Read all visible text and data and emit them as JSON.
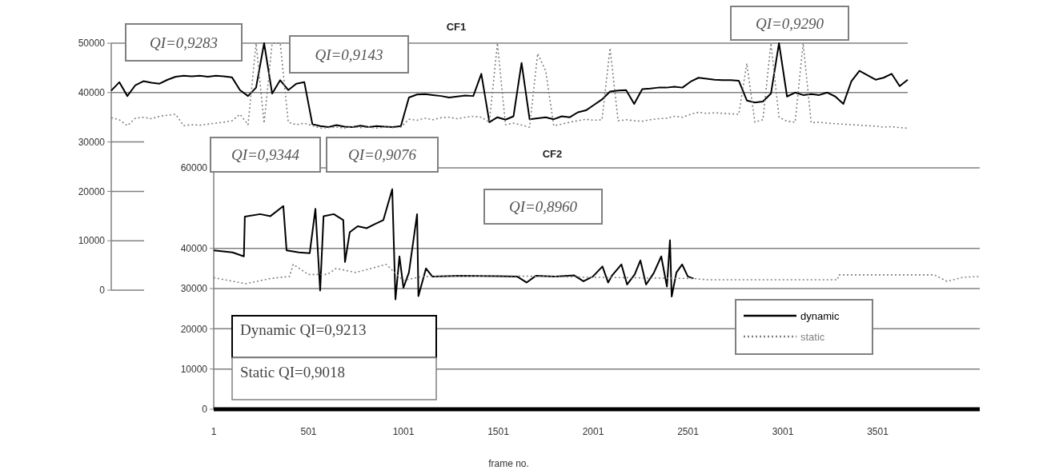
{
  "chart_data": [
    {
      "type": "line",
      "title": "CF1",
      "ylim": [
        0,
        50000
      ],
      "yticks": [
        0,
        10000,
        20000,
        30000,
        40000,
        50000
      ],
      "grid": "y",
      "tick_labels": "y",
      "categories": [
        null,
        null,
        null,
        null,
        null,
        null,
        null,
        null,
        null,
        null,
        null,
        null,
        null,
        null,
        null,
        null,
        null,
        null,
        null,
        null,
        null,
        null,
        null,
        null,
        null,
        null,
        null,
        null,
        null,
        null,
        null,
        null,
        null,
        null,
        null,
        null,
        null,
        null,
        null,
        null,
        null,
        null,
        null,
        null,
        null,
        null,
        null,
        null,
        null,
        null,
        null,
        null,
        null,
        null,
        null,
        null,
        null,
        null,
        null,
        null,
        null,
        null,
        null,
        null,
        null,
        null,
        null,
        null,
        null,
        null,
        null,
        null,
        null,
        null,
        null,
        null,
        null,
        null,
        null,
        null,
        null,
        null,
        null,
        null,
        null,
        null,
        null,
        null,
        null,
        null,
        null,
        null,
        null,
        null,
        null,
        null,
        null,
        null,
        null,
        null
      ],
      "series": [
        {
          "color": "#000000",
          "line_style": "solid",
          "values": [
            40400,
            42100,
            39300,
            41500,
            42300,
            42000,
            41800,
            42600,
            43200,
            43400,
            43300,
            43400,
            43200,
            43400,
            43300,
            43100,
            40500,
            39300,
            41000,
            50000,
            39800,
            42500,
            40500,
            41800,
            42100,
            33600,
            33200,
            33000,
            33400,
            33100,
            33000,
            33300,
            33000,
            33200,
            33100,
            33000,
            33200,
            39000,
            39600,
            39700,
            39500,
            39300,
            39000,
            39200,
            39400,
            39300,
            43800,
            34000,
            35000,
            34500,
            35200,
            46000,
            34600,
            34800,
            35000,
            34600,
            35200,
            35000,
            36000,
            36400,
            37500,
            38600,
            40200,
            40400,
            40500,
            37700,
            40700,
            40800,
            41000,
            41000,
            41200,
            41000,
            42200,
            43000,
            42800,
            42600,
            42500,
            42500,
            42400,
            38400,
            38000,
            38200,
            39800,
            50000,
            39200,
            40000,
            39500,
            39700,
            39500,
            40000,
            39200,
            37700,
            42300,
            44400,
            43500,
            42600,
            43000,
            43800,
            41300,
            42600
          ]
        },
        {
          "color": "#808080",
          "line_style": "dotted",
          "values": [
            34900,
            34500,
            33300,
            34800,
            35000,
            34700,
            35200,
            35400,
            35600,
            33300,
            33500,
            33400,
            33600,
            33800,
            34000,
            34300,
            35600,
            33500,
            50000,
            33800,
            50000,
            50000,
            34000,
            33500,
            33800,
            33300,
            32800,
            32900,
            33000,
            32800,
            33100,
            32900,
            33000,
            32800,
            33000,
            32900,
            33000,
            34600,
            34400,
            34800,
            34500,
            34900,
            35000,
            34700,
            35000,
            35200,
            35000,
            34000,
            50000,
            33500,
            33800,
            33400,
            33000,
            47900,
            44400,
            33300,
            33600,
            34000,
            34300,
            34600,
            34400,
            34500,
            49000,
            34300,
            34500,
            34300,
            34200,
            34500,
            34700,
            34800,
            35200,
            35000,
            35600,
            36000,
            35800,
            35900,
            35800,
            35700,
            35600,
            45900,
            34000,
            34500,
            50000,
            35000,
            34200,
            34000,
            50000,
            33900,
            34000,
            33800,
            33700,
            33600,
            33500,
            33400,
            33300,
            33200,
            33000,
            33100,
            32900,
            32800
          ]
        }
      ],
      "annotations": [
        "QI=0,9283",
        "QI=0,9143",
        "QI=0,9290"
      ]
    },
    {
      "type": "line",
      "title": "CF2",
      "xlabel": "frame no.",
      "xlim": [
        1,
        4039
      ],
      "xticks": [
        1,
        501,
        1001,
        1501,
        2001,
        2501,
        3001,
        3501
      ],
      "ylim": [
        0,
        60000
      ],
      "yticks": [
        0,
        10000,
        20000,
        30000,
        40000,
        60000
      ],
      "grid": "y",
      "legend": "bottom right",
      "series": [
        {
          "name": "dynamic",
          "color": "#000000",
          "line_style": "solid",
          "x": [
            1,
            100,
            160,
            165,
            246,
            300,
            368,
            385,
            450,
            507,
            537,
            562,
            580,
            634,
            684,
            693,
            718,
            760,
            807,
            850,
            895,
            942,
            959,
            980,
            1001,
            1030,
            1073,
            1080,
            1120,
            1153,
            1300,
            1500,
            1600,
            1650,
            1700,
            1800,
            1900,
            1950,
            2000,
            2050,
            2080,
            2100,
            2150,
            2180,
            2220,
            2250,
            2280,
            2320,
            2360,
            2390,
            2406,
            2415,
            2440,
            2470,
            2500,
            2530
          ],
          "values": [
            39500,
            39000,
            38000,
            47900,
            48500,
            48000,
            50500,
            39500,
            39000,
            38800,
            49800,
            29500,
            48000,
            48500,
            47000,
            36600,
            44000,
            45500,
            45000,
            46000,
            47000,
            54700,
            27300,
            38000,
            30200,
            34000,
            48500,
            28100,
            35000,
            33000,
            33200,
            33100,
            33000,
            31500,
            33200,
            33000,
            33300,
            31800,
            33000,
            35500,
            31500,
            33200,
            36000,
            31000,
            33500,
            37000,
            31000,
            33800,
            38000,
            30500,
            42000,
            28000,
            34000,
            36000,
            33000,
            32500
          ]
        },
        {
          "name": "static",
          "color": "#808080",
          "line_style": "dotted",
          "x": [
            1,
            170,
            300,
            400,
            420,
            500,
            600,
            646,
            750,
            910,
            1000,
            1100,
            1500,
            2000,
            2530,
            2600,
            3000,
            3290,
            3296,
            3800,
            3866,
            3950,
            4039
          ],
          "values": [
            32700,
            31200,
            32500,
            33000,
            36000,
            33500,
            33500,
            35000,
            34000,
            36000,
            32000,
            33000,
            33200,
            32800,
            32500,
            32200,
            32200,
            32200,
            33400,
            33400,
            31800,
            32800,
            33000
          ]
        }
      ],
      "annotations": [
        "QI=0,9344",
        "QI=0,9076",
        "QI=0,8960",
        "Dynamic QI=0,9213",
        "Static QI=0,9018"
      ]
    }
  ]
}
